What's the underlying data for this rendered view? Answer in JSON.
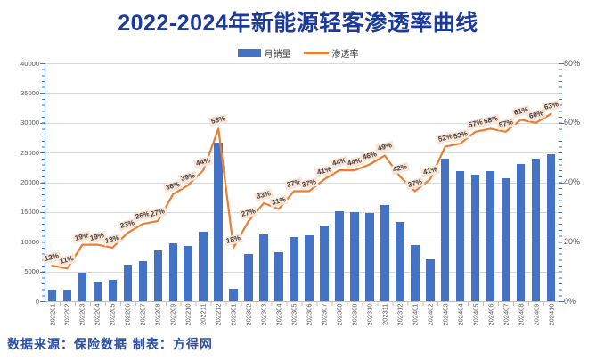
{
  "chart_data": {
    "type": "bar+line",
    "title": "2022-2024年新能源轻客渗透率曲线",
    "legend": {
      "bar_label": "月销量",
      "line_label": "渗透率",
      "position": "top"
    },
    "categories": [
      "202201",
      "202202",
      "202203",
      "202204",
      "202205",
      "202206",
      "202207",
      "202208",
      "202209",
      "202210",
      "202211",
      "202212",
      "202301",
      "202302",
      "202303",
      "202304",
      "202305",
      "202306",
      "202307",
      "202308",
      "202309",
      "202310",
      "202311",
      "202312",
      "202401",
      "202402",
      "202403",
      "202404",
      "202405",
      "202406",
      "202407",
      "202408",
      "202409",
      "202410"
    ],
    "series": [
      {
        "name": "月销量",
        "type": "bar",
        "yaxis": "left",
        "values": [
          2000,
          1950,
          4800,
          3350,
          3600,
          6150,
          6800,
          8500,
          9800,
          9250,
          11700,
          26600,
          2100,
          7900,
          11200,
          8300,
          10850,
          11150,
          12700,
          15100,
          15000,
          14800,
          16200,
          13400,
          9450,
          7000,
          24000,
          21900,
          21300,
          21800,
          20700,
          23000,
          24000,
          24700
        ]
      },
      {
        "name": "渗透率",
        "type": "line",
        "yaxis": "right",
        "unit": "%",
        "values": [
          12,
          11,
          19,
          19,
          18,
          23,
          26,
          27,
          36,
          39,
          44,
          58,
          18,
          27,
          33,
          31,
          37,
          37,
          41,
          44,
          44,
          46,
          49,
          42,
          37,
          41,
          52,
          53,
          57,
          58,
          57,
          61,
          60,
          63
        ],
        "point_labels": [
          "12%",
          "11%",
          "19%",
          "19%",
          "18%",
          "23%",
          "26%",
          "27%",
          "36%",
          "39%",
          "44%",
          "58%",
          "18%",
          "27%",
          "33%",
          "31%",
          "37%",
          "37%",
          "41%",
          "44%",
          "44%",
          "46%",
          "49%",
          "42%",
          "37%",
          "41%",
          "52%",
          "53%",
          "57%",
          "58%",
          "57%",
          "61%",
          "60%",
          "63%"
        ]
      }
    ],
    "left_axis": {
      "min": 0,
      "max": 40000,
      "tick_interval": 5000,
      "ticks": [
        "0",
        "5000",
        "10000",
        "15000",
        "20000",
        "25000",
        "30000",
        "35000",
        "40000"
      ]
    },
    "right_axis": {
      "min": 0,
      "max": 80,
      "tick_interval": 20,
      "unit": "%",
      "ticks": [
        "0%",
        "20%",
        "40%",
        "60%",
        "80%"
      ]
    },
    "grid": true,
    "footer": "数据来源：保险数据 制表：方得网",
    "colors": {
      "bar": "#4472C4",
      "line": "#ED7D31",
      "label_bg": "#FBE5D6",
      "label_text": "#3d3d3d",
      "title": "#1B3A9B",
      "footer": "#2B4FA5",
      "grid": "#D9D9D9",
      "axis_text": "#595959",
      "spine": "#4472C4",
      "x_axis_line": "#BFBFBF"
    }
  }
}
